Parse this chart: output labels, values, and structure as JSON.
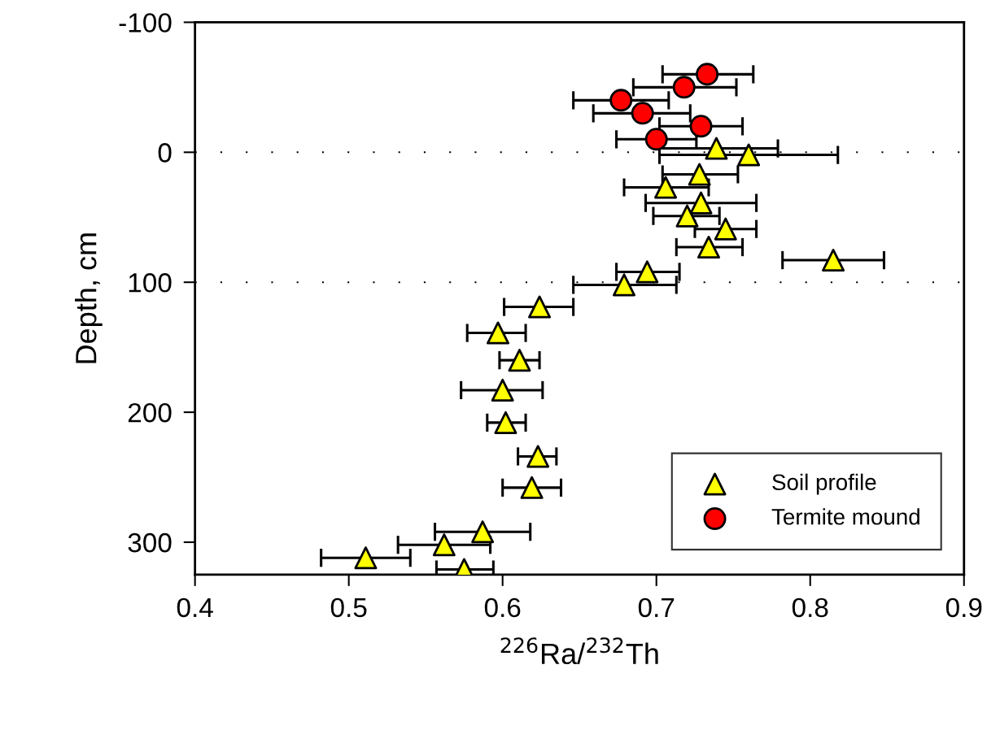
{
  "chart_data": {
    "type": "scatter",
    "xlabel": "$^{226}$Ra/$^{232}$Th",
    "ylabel": "Depth, cm",
    "xlim": [
      0.4,
      0.9
    ],
    "xticks": [
      0.4,
      0.5,
      0.6,
      0.7,
      0.8,
      0.9
    ],
    "ylim": [
      325,
      -100
    ],
    "yticks": [
      -100,
      0,
      100,
      200,
      300
    ],
    "grid": false,
    "legend": "bottom right",
    "ref_lines": [
      {
        "axis": "y",
        "value": 0,
        "line_style": "dotted",
        "color": "#000000"
      },
      {
        "axis": "y",
        "value": 100,
        "line_style": "dotted",
        "color": "#000000"
      }
    ],
    "series": [
      {
        "name": "Soil profile",
        "color": "#ffff00",
        "marker": "triangle",
        "x": [
          0.739,
          0.76,
          0.728,
          0.706,
          0.729,
          0.72,
          0.745,
          0.734,
          0.815,
          0.694,
          0.679,
          0.624,
          0.597,
          0.611,
          0.6,
          0.602,
          0.623,
          0.619,
          0.587,
          0.562,
          0.511,
          0.575
        ],
        "values": [
          -3,
          2,
          17,
          27,
          39,
          49,
          59,
          73,
          83,
          92,
          102,
          119,
          139,
          160,
          183,
          208,
          234,
          258,
          292,
          302,
          312,
          321
        ],
        "xerrors": [
          [
            0.702,
            0.779
          ],
          [
            0.702,
            0.818
          ],
          [
            0.704,
            0.753
          ],
          [
            0.679,
            0.734
          ],
          [
            0.693,
            0.765
          ],
          [
            0.698,
            0.741
          ],
          [
            0.725,
            0.765
          ],
          [
            0.713,
            0.756
          ],
          [
            0.782,
            0.848
          ],
          [
            0.674,
            0.715
          ],
          [
            0.646,
            0.713
          ],
          [
            0.601,
            0.646
          ],
          [
            0.577,
            0.615
          ],
          [
            0.598,
            0.624
          ],
          [
            0.573,
            0.626
          ],
          [
            0.59,
            0.615
          ],
          [
            0.61,
            0.635
          ],
          [
            0.6,
            0.638
          ],
          [
            0.556,
            0.618
          ],
          [
            0.532,
            0.592
          ],
          [
            0.482,
            0.54
          ],
          [
            0.557,
            0.594
          ]
        ]
      },
      {
        "name": "Termite mound",
        "color": "#ff0000",
        "marker": "circle",
        "x": [
          0.733,
          0.718,
          0.677,
          0.691,
          0.729,
          0.7
        ],
        "values": [
          -60,
          -50,
          -40,
          -30,
          -20,
          -10
        ],
        "xerrors": [
          [
            0.704,
            0.763
          ],
          [
            0.685,
            0.752
          ],
          [
            0.646,
            0.708
          ],
          [
            0.659,
            0.722
          ],
          [
            0.702,
            0.756
          ],
          [
            0.674,
            0.726
          ]
        ]
      }
    ]
  }
}
